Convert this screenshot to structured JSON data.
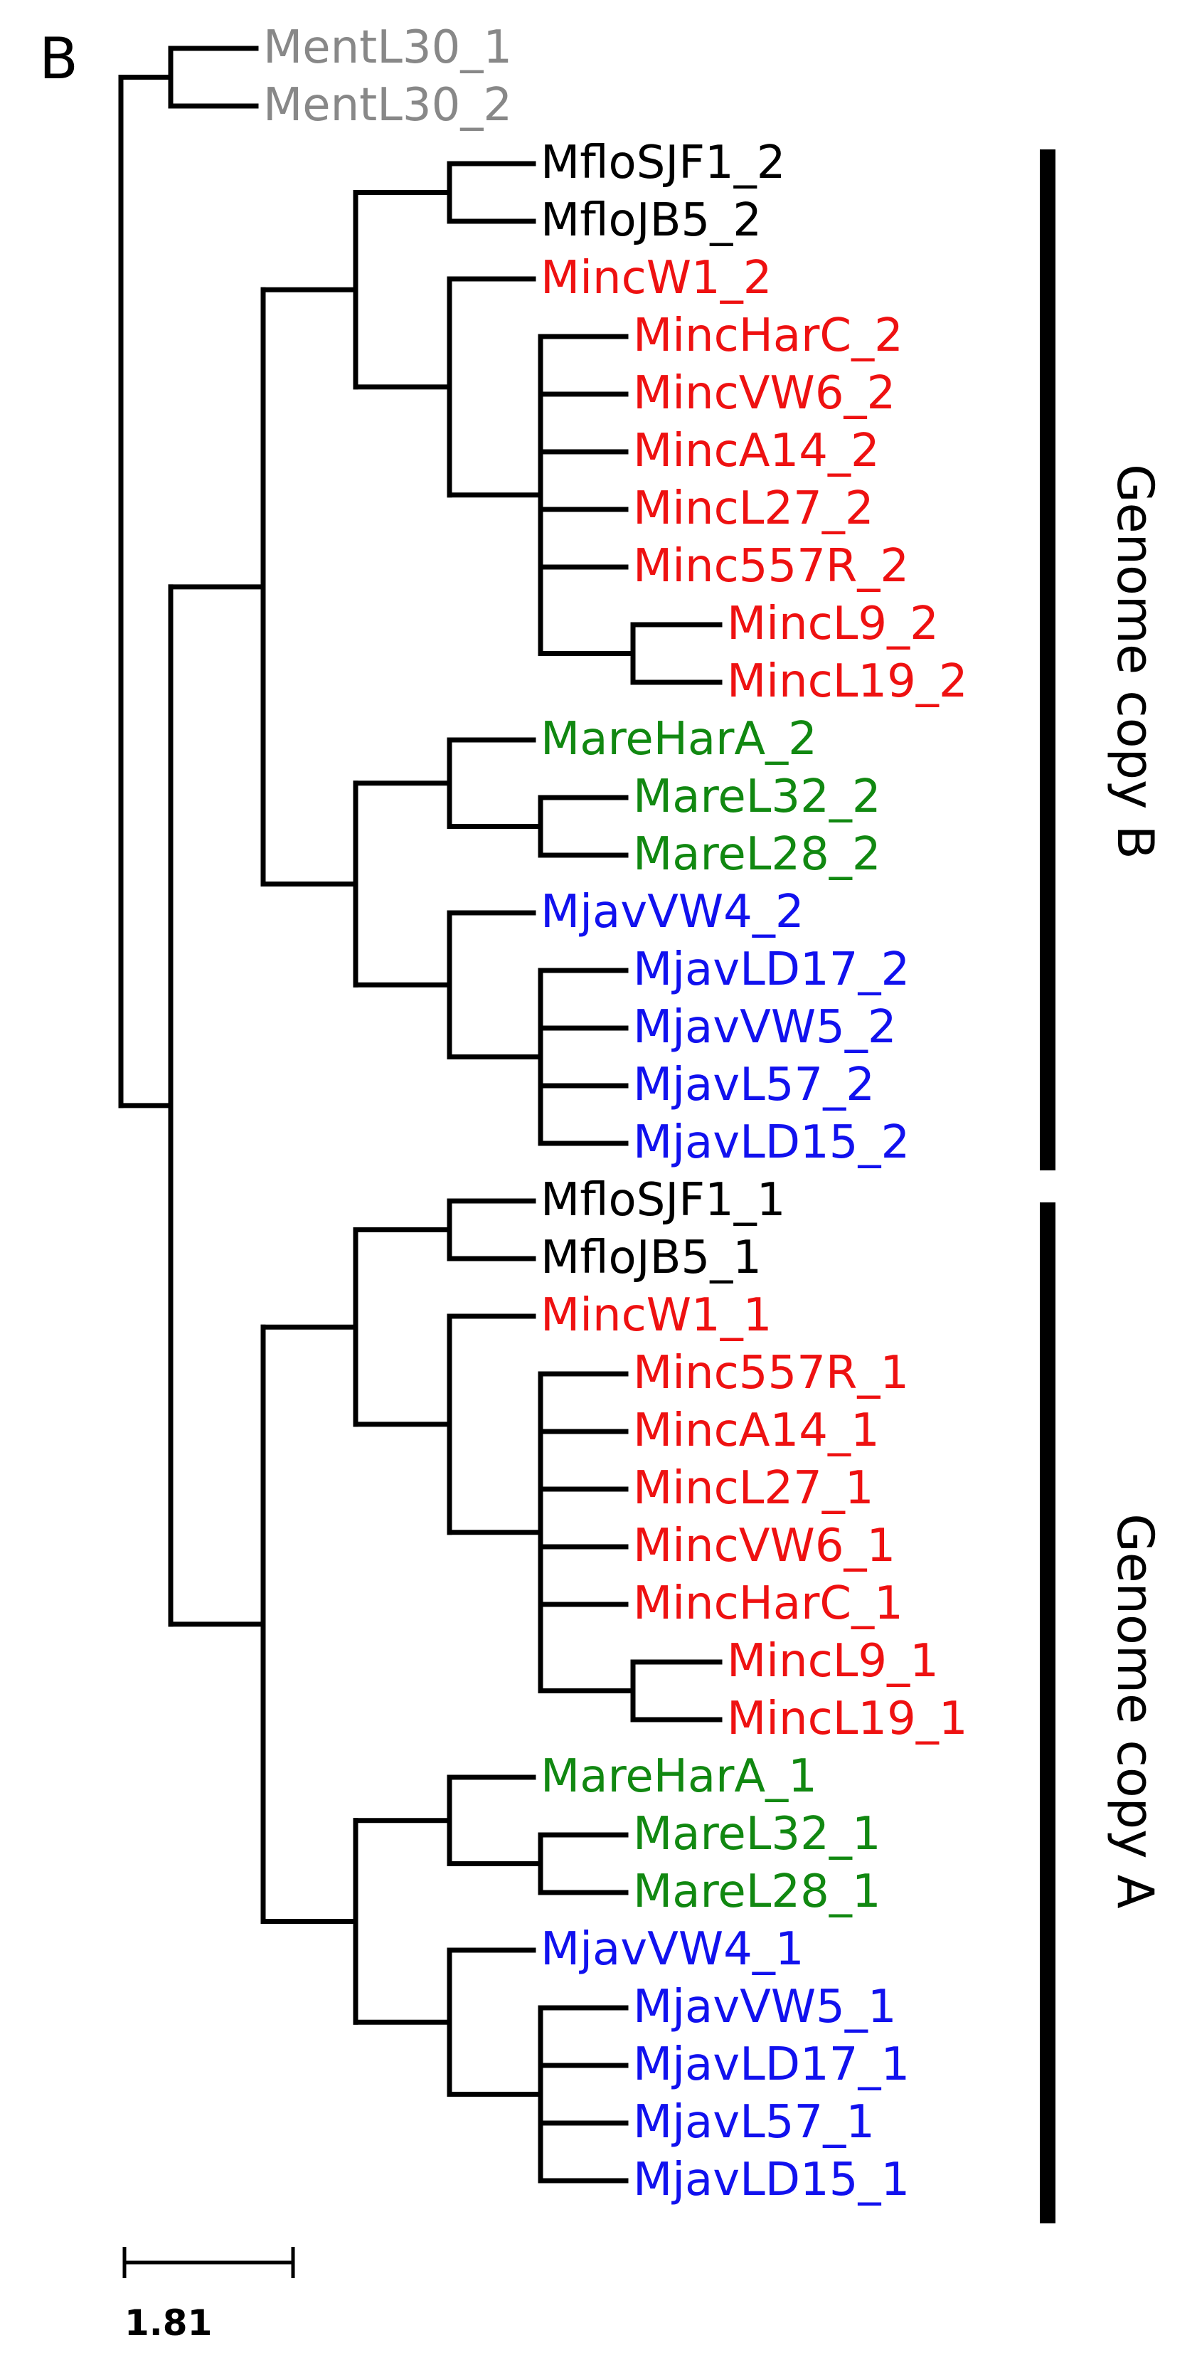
{
  "panel_label": "B",
  "colors": {
    "outgroup": "#888888",
    "M_floridensis": "#000000",
    "M_incognita": "#ee1111",
    "M_arenaria": "#118811",
    "M_javanica": "#1111ee"
  },
  "group_labels": {
    "copy_b": "Genome copy B",
    "copy_a": "Genome copy A"
  },
  "scale_bar": {
    "label": "1.81"
  },
  "leaves": [
    {
      "name": "MentL30_1",
      "color": "outgroup"
    },
    {
      "name": "MentL30_2",
      "color": "outgroup"
    },
    {
      "name": "MfloSJF1_2",
      "color": "M_floridensis"
    },
    {
      "name": "MfloJB5_2",
      "color": "M_floridensis"
    },
    {
      "name": "MincW1_2",
      "color": "M_incognita"
    },
    {
      "name": "MincHarC_2",
      "color": "M_incognita"
    },
    {
      "name": "MincVW6_2",
      "color": "M_incognita"
    },
    {
      "name": "MincA14_2",
      "color": "M_incognita"
    },
    {
      "name": "MincL27_2",
      "color": "M_incognita"
    },
    {
      "name": "Minc557R_2",
      "color": "M_incognita"
    },
    {
      "name": "MincL9_2",
      "color": "M_incognita"
    },
    {
      "name": "MincL19_2",
      "color": "M_incognita"
    },
    {
      "name": "MareHarA_2",
      "color": "M_arenaria"
    },
    {
      "name": "MareL32_2",
      "color": "M_arenaria"
    },
    {
      "name": "MareL28_2",
      "color": "M_arenaria"
    },
    {
      "name": "MjavVW4_2",
      "color": "M_javanica"
    },
    {
      "name": "MjavLD17_2",
      "color": "M_javanica"
    },
    {
      "name": "MjavVW5_2",
      "color": "M_javanica"
    },
    {
      "name": "MjavL57_2",
      "color": "M_javanica"
    },
    {
      "name": "MjavLD15_2",
      "color": "M_javanica"
    },
    {
      "name": "MfloSJF1_1",
      "color": "M_floridensis"
    },
    {
      "name": "MfloJB5_1",
      "color": "M_floridensis"
    },
    {
      "name": "MincW1_1",
      "color": "M_incognita"
    },
    {
      "name": "Minc557R_1",
      "color": "M_incognita"
    },
    {
      "name": "MincA14_1",
      "color": "M_incognita"
    },
    {
      "name": "MincL27_1",
      "color": "M_incognita"
    },
    {
      "name": "MincVW6_1",
      "color": "M_incognita"
    },
    {
      "name": "MincHarC_1",
      "color": "M_incognita"
    },
    {
      "name": "MincL9_1",
      "color": "M_incognita"
    },
    {
      "name": "MincL19_1",
      "color": "M_incognita"
    },
    {
      "name": "MareHarA_1",
      "color": "M_arenaria"
    },
    {
      "name": "MareL32_1",
      "color": "M_arenaria"
    },
    {
      "name": "MareL28_1",
      "color": "M_arenaria"
    },
    {
      "name": "MjavVW4_1",
      "color": "M_javanica"
    },
    {
      "name": "MjavVW5_1",
      "color": "M_javanica"
    },
    {
      "name": "MjavLD17_1",
      "color": "M_javanica"
    },
    {
      "name": "MjavL57_1",
      "color": "M_javanica"
    },
    {
      "name": "MjavLD15_1",
      "color": "M_javanica"
    }
  ]
}
